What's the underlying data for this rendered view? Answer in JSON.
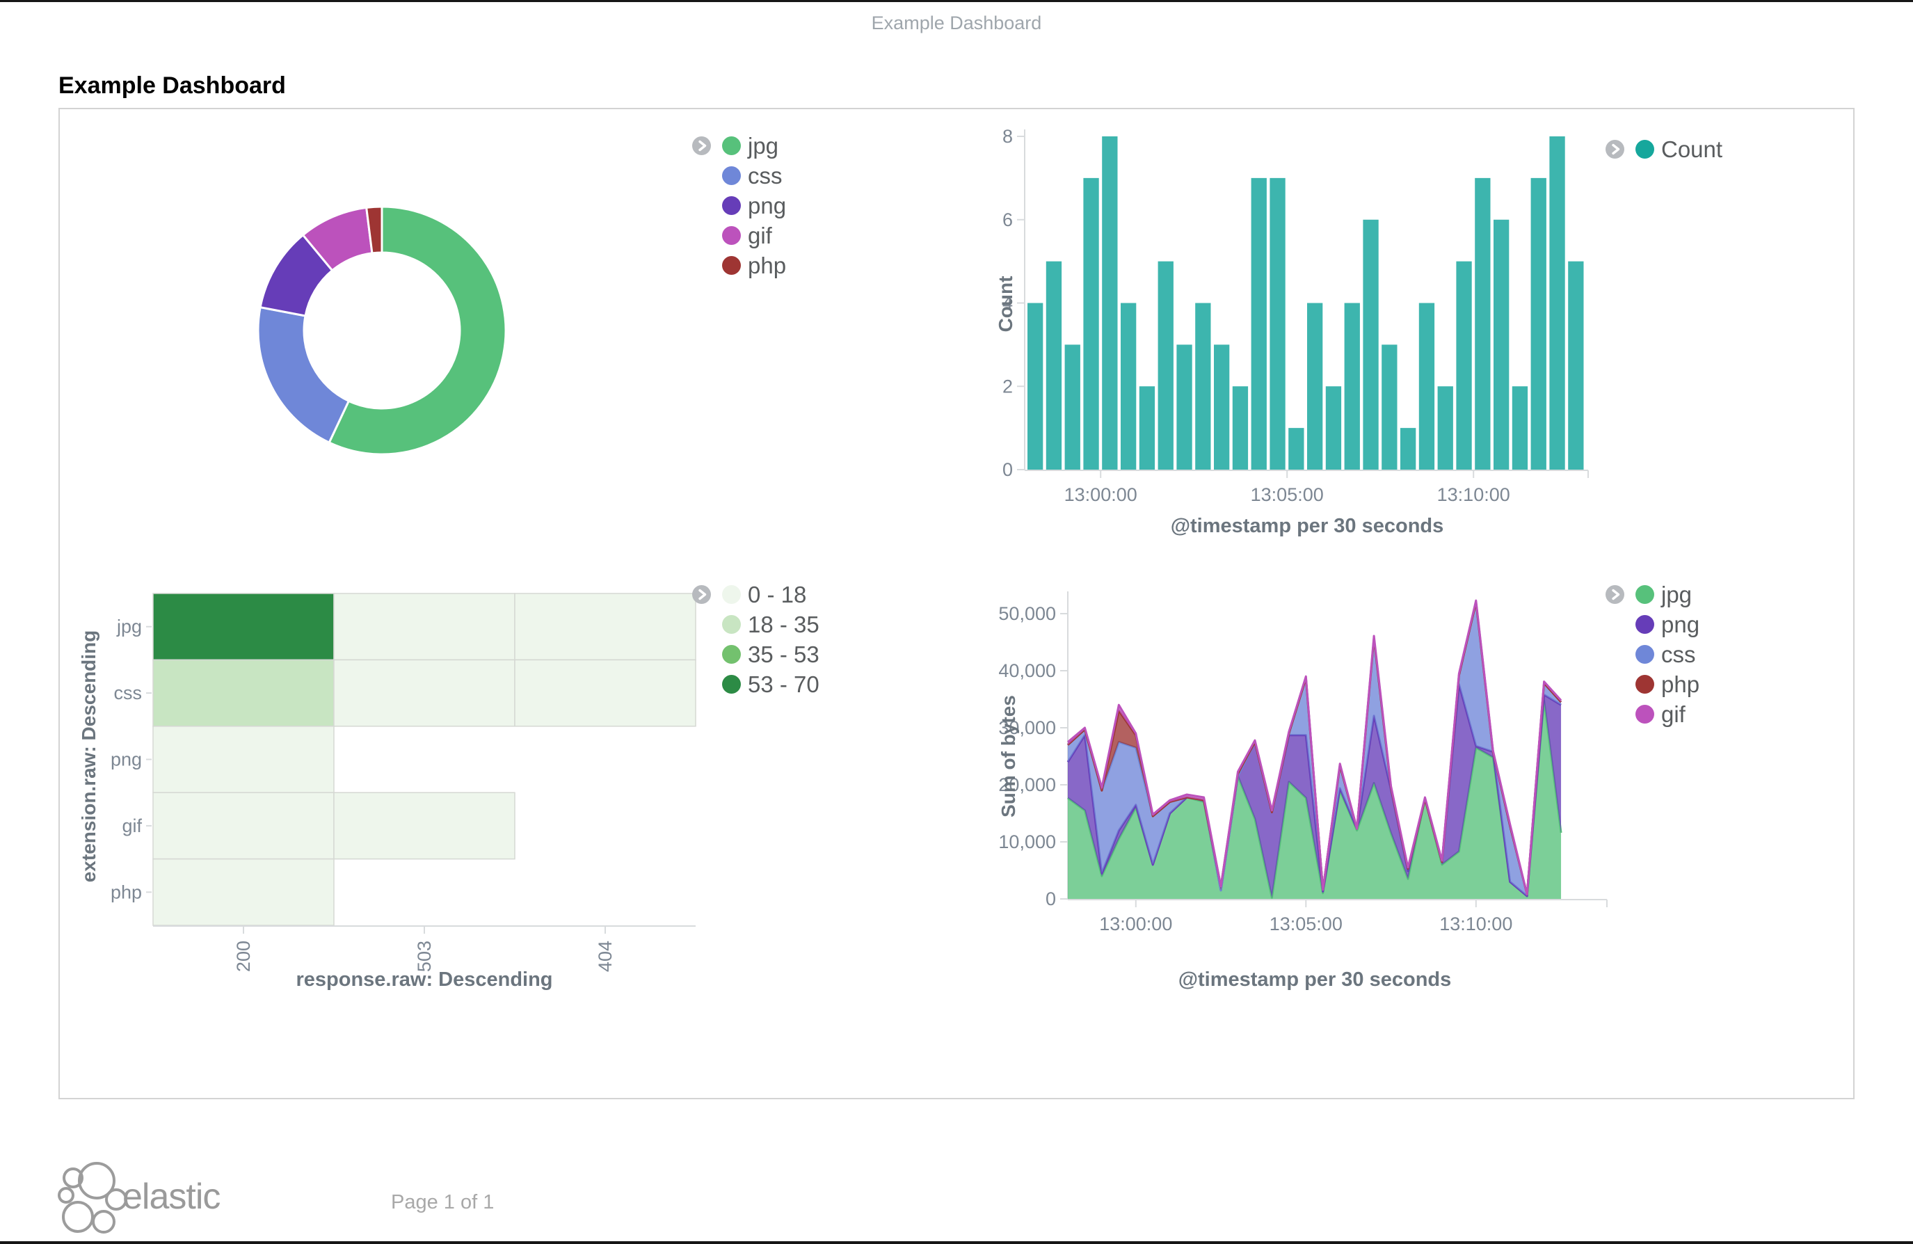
{
  "page": {
    "top_title": "Example Dashboard",
    "heading": "Example Dashboard",
    "footer": {
      "brand": "elastic",
      "page_label": "Page 1 of 1"
    }
  },
  "colors": {
    "bar_fill": "#3db5ae",
    "count_legend_dot": "#16a79c",
    "panel_border": "#d3d3d3",
    "axis_line": "#d8dbdd",
    "axis_text": "#7d8793",
    "caption_text": "#6b757e",
    "legend_text": "#595c5e",
    "chevron_bg": "#b7babe"
  },
  "chart_data": [
    {
      "type": "pie",
      "donut": true,
      "labels": [
        "jpg",
        "css",
        "png",
        "gif",
        "php"
      ],
      "values_pct": [
        57,
        21,
        11,
        9,
        2
      ],
      "colors": [
        "#57c17b",
        "#6f87d8",
        "#663db8",
        "#bc52bc",
        "#9e3533"
      ],
      "legend_position": "right"
    },
    {
      "type": "bar",
      "series_name": "Count",
      "color": "#3db5ae",
      "legend_color": "#16a79c",
      "values": [
        4,
        5,
        3,
        7,
        8,
        4,
        2,
        5,
        3,
        4,
        3,
        2,
        7,
        7,
        1,
        4,
        2,
        4,
        6,
        3,
        1,
        4,
        2,
        5,
        7,
        6,
        2,
        7,
        8,
        5
      ],
      "interval_seconds": 30,
      "x_tick_labels": [
        "13:00:00",
        "13:05:00",
        "13:10:00"
      ],
      "x_tick_indices": [
        4,
        14,
        24
      ],
      "y_ticks": [
        0,
        2,
        4,
        6,
        8
      ],
      "ylim": [
        0,
        8
      ],
      "ylabel": "Count",
      "xlabel": "@timestamp per 30 seconds"
    },
    {
      "type": "heatmap",
      "rows": [
        "jpg",
        "css",
        "png",
        "gif",
        "php"
      ],
      "cols": [
        "200",
        "503",
        "404"
      ],
      "ylabel": "extension.raw: Descending",
      "xlabel": "response.raw: Descending",
      "legend": [
        {
          "label": "0 - 18",
          "color": "#eef6ec"
        },
        {
          "label": "18 - 35",
          "color": "#c8e5c2"
        },
        {
          "label": "35 - 53",
          "color": "#73c16e"
        },
        {
          "label": "53 - 70",
          "color": "#2c8b45"
        }
      ],
      "cells": [
        {
          "row": "jpg",
          "col": "200",
          "value": 62,
          "bucket": 3
        },
        {
          "row": "jpg",
          "col": "503",
          "value": 3,
          "bucket": 0
        },
        {
          "row": "jpg",
          "col": "404",
          "value": 3,
          "bucket": 0
        },
        {
          "row": "css",
          "col": "200",
          "value": 28,
          "bucket": 1
        },
        {
          "row": "css",
          "col": "503",
          "value": 3,
          "bucket": 0
        },
        {
          "row": "css",
          "col": "404",
          "value": 2,
          "bucket": 0
        },
        {
          "row": "png",
          "col": "200",
          "value": 14,
          "bucket": 0
        },
        {
          "row": "gif",
          "col": "200",
          "value": 11,
          "bucket": 0
        },
        {
          "row": "gif",
          "col": "503",
          "value": 2,
          "bucket": 0
        },
        {
          "row": "php",
          "col": "200",
          "value": 5,
          "bucket": 0
        }
      ]
    },
    {
      "type": "area",
      "stacked": true,
      "ylabel": "Sum of bytes",
      "xlabel": "@timestamp per 30 seconds",
      "y_ticks": [
        "0",
        "10,000",
        "20,000",
        "30,000",
        "40,000",
        "50,000"
      ],
      "y_tick_values": [
        0,
        10000,
        20000,
        30000,
        40000,
        50000
      ],
      "ylim": [
        0,
        55000
      ],
      "x_tick_labels": [
        "13:00:00",
        "13:05:00",
        "13:10:00"
      ],
      "x_tick_indices": [
        4,
        14,
        24
      ],
      "series": [
        {
          "name": "jpg",
          "color": "#57c17b",
          "values": [
            17700,
            15500,
            4000,
            10500,
            16000,
            6000,
            15000,
            17800,
            17000,
            1500,
            21500,
            14000,
            200,
            20500,
            17700,
            1000,
            19000,
            12000,
            20300,
            11500,
            3500,
            17500,
            6000,
            8300,
            26500,
            24800,
            3000,
            500,
            34800,
            11600
          ]
        },
        {
          "name": "png",
          "color": "#663db8",
          "values": [
            6300,
            13200,
            500,
            1500,
            500,
            0,
            0,
            0,
            300,
            0,
            0,
            13500,
            15000,
            8200,
            11000,
            300,
            400,
            300,
            11800,
            7700,
            1400,
            0,
            500,
            29300,
            300,
            1000,
            0,
            0,
            1000,
            22400
          ]
        },
        {
          "name": "css",
          "color": "#6f87d8",
          "values": [
            3000,
            1000,
            14500,
            15500,
            10000,
            8500,
            2000,
            0,
            0,
            0,
            0,
            0,
            0,
            300,
            10000,
            300,
            4000,
            0,
            13600,
            300,
            400,
            0,
            0,
            1600,
            25200,
            0,
            9800,
            300,
            2000,
            500
          ]
        },
        {
          "name": "php",
          "color": "#9e3533",
          "values": [
            0,
            0,
            0,
            5500,
            2200,
            0,
            0,
            0,
            0,
            700,
            500,
            0,
            0,
            0,
            0,
            0,
            0,
            0,
            0,
            0,
            0,
            0,
            0,
            0,
            0,
            0,
            0,
            0,
            0,
            0
          ]
        },
        {
          "name": "gif",
          "color": "#bc52bc",
          "values": [
            500,
            300,
            500,
            1000,
            300,
            300,
            300,
            500,
            500,
            0,
            300,
            300,
            300,
            300,
            300,
            0,
            300,
            0,
            400,
            300,
            200,
            300,
            200,
            300,
            300,
            200,
            300,
            0,
            300,
            300
          ]
        }
      ]
    }
  ]
}
